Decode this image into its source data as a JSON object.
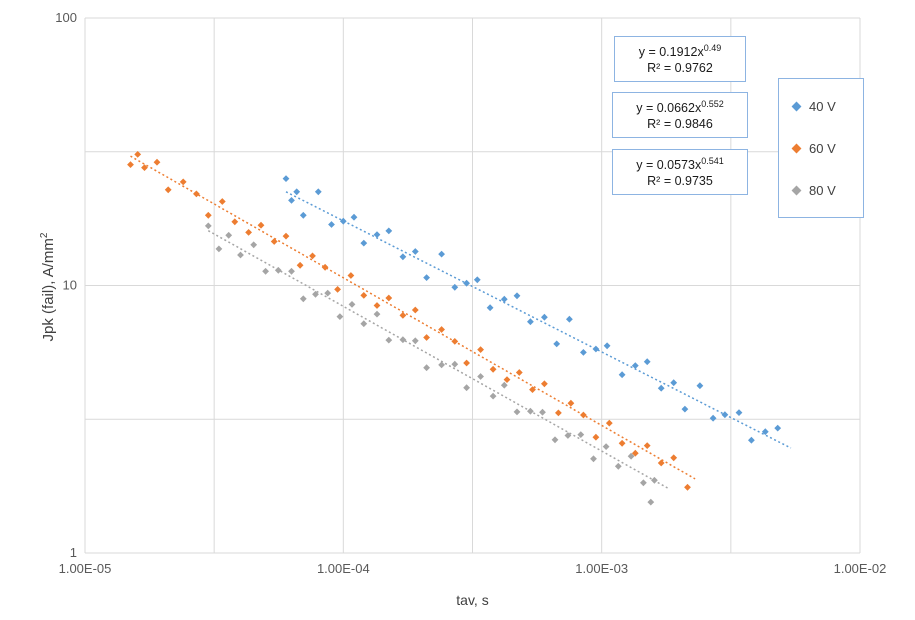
{
  "chart_data": {
    "type": "scatter",
    "title": "",
    "xlabel": "tav, s",
    "ylabel": "Jpk (fail),  A/mm",
    "ylabel_sup": "2",
    "x_scale": "log",
    "y_scale": "log",
    "xlim": [
      1e-05,
      0.01
    ],
    "ylim": [
      1,
      100
    ],
    "x_ticks": [
      {
        "value": 1e-05,
        "label": "1.00E-05"
      },
      {
        "value": 0.0001,
        "label": "1.00E-04"
      },
      {
        "value": 0.001,
        "label": "1.00E-03"
      },
      {
        "value": 0.01,
        "label": "1.00E-02"
      }
    ],
    "y_ticks": [
      {
        "value": 1,
        "label": "1"
      },
      {
        "value": 10,
        "label": "10"
      },
      {
        "value": 100,
        "label": "100"
      }
    ],
    "grid": "half-decade",
    "grid_color": "#D9D9D9",
    "legend_position": "right",
    "series": [
      {
        "name": "40 V",
        "color": "#5B9BD5",
        "marker": "diamond",
        "fit": {
          "a": 0.1912,
          "b": -0.49,
          "x_min": 6e-05,
          "x_max": 0.0054
        },
        "points": [
          [
            6e-05,
            25.1
          ],
          [
            6.3e-05,
            20.8
          ],
          [
            6.6e-05,
            22.4
          ],
          [
            7e-05,
            18.3
          ],
          [
            8e-05,
            22.4
          ],
          [
            9e-05,
            16.9
          ],
          [
            0.0001,
            17.4
          ],
          [
            0.00011,
            18.0
          ],
          [
            0.00012,
            14.4
          ],
          [
            0.000135,
            15.5
          ],
          [
            0.00015,
            16.0
          ],
          [
            0.00017,
            12.8
          ],
          [
            0.00019,
            13.4
          ],
          [
            0.00021,
            10.7
          ],
          [
            0.00024,
            13.1
          ],
          [
            0.00027,
            9.85
          ],
          [
            0.0003,
            10.2
          ],
          [
            0.00033,
            10.5
          ],
          [
            0.00037,
            8.26
          ],
          [
            0.00042,
            8.89
          ],
          [
            0.00047,
            9.15
          ],
          [
            0.00053,
            7.32
          ],
          [
            0.0006,
            7.61
          ],
          [
            0.00067,
            6.05
          ],
          [
            0.00075,
            7.48
          ],
          [
            0.00085,
            5.62
          ],
          [
            0.00095,
            5.79
          ],
          [
            0.00105,
            5.95
          ],
          [
            0.0012,
            4.64
          ],
          [
            0.00135,
            5.02
          ],
          [
            0.0015,
            5.19
          ],
          [
            0.0017,
            4.13
          ],
          [
            0.0019,
            4.33
          ],
          [
            0.0021,
            3.45
          ],
          [
            0.0024,
            4.22
          ],
          [
            0.0027,
            3.19
          ],
          [
            0.003,
            3.29
          ],
          [
            0.0034,
            3.35
          ],
          [
            0.0038,
            2.64
          ],
          [
            0.0043,
            2.84
          ],
          [
            0.0048,
            2.93
          ]
        ]
      },
      {
        "name": "60 V",
        "color": "#ED7D31",
        "marker": "diamond",
        "fit": {
          "a": 0.0662,
          "b": -0.552,
          "x_min": 1.5e-05,
          "x_max": 0.0023
        },
        "points": [
          [
            1.5e-05,
            28.3
          ],
          [
            1.6e-05,
            30.9
          ],
          [
            1.7e-05,
            27.6
          ],
          [
            1.9e-05,
            28.9
          ],
          [
            2.1e-05,
            22.8
          ],
          [
            2.4e-05,
            24.4
          ],
          [
            2.7e-05,
            22.0
          ],
          [
            3e-05,
            18.3
          ],
          [
            3.4e-05,
            20.6
          ],
          [
            3.8e-05,
            17.3
          ],
          [
            4.3e-05,
            15.8
          ],
          [
            4.8e-05,
            16.8
          ],
          [
            5.4e-05,
            14.6
          ],
          [
            6e-05,
            15.3
          ],
          [
            6.8e-05,
            11.9
          ],
          [
            7.6e-05,
            12.9
          ],
          [
            8.5e-05,
            11.7
          ],
          [
            9.5e-05,
            9.67
          ],
          [
            0.000107,
            10.9
          ],
          [
            0.00012,
            9.18
          ],
          [
            0.000135,
            8.42
          ],
          [
            0.00015,
            8.98
          ],
          [
            0.00017,
            7.73
          ],
          [
            0.00019,
            8.1
          ],
          [
            0.00021,
            6.39
          ],
          [
            0.00024,
            6.85
          ],
          [
            0.00027,
            6.18
          ],
          [
            0.0003,
            5.13
          ],
          [
            0.00034,
            5.76
          ],
          [
            0.00038,
            4.86
          ],
          [
            0.00043,
            4.45
          ],
          [
            0.00048,
            4.73
          ],
          [
            0.00054,
            4.08
          ],
          [
            0.0006,
            4.29
          ],
          [
            0.00068,
            3.34
          ],
          [
            0.00076,
            3.63
          ],
          [
            0.00085,
            3.28
          ],
          [
            0.00095,
            2.71
          ],
          [
            0.00107,
            3.06
          ],
          [
            0.0012,
            2.57
          ],
          [
            0.00135,
            2.36
          ],
          [
            0.0015,
            2.52
          ],
          [
            0.0017,
            2.17
          ],
          [
            0.0019,
            2.27
          ],
          [
            0.00215,
            1.76
          ]
        ]
      },
      {
        "name": "80 V",
        "color": "#A5A5A5",
        "marker": "diamond",
        "fit": {
          "a": 0.0573,
          "b": -0.541,
          "x_min": 3e-05,
          "x_max": 0.0018
        },
        "points": [
          [
            3e-05,
            16.7
          ],
          [
            3.3e-05,
            13.7
          ],
          [
            3.6e-05,
            15.4
          ],
          [
            4e-05,
            13.0
          ],
          [
            4.5e-05,
            14.2
          ],
          [
            5e-05,
            11.3
          ],
          [
            5.6e-05,
            11.4
          ],
          [
            6.3e-05,
            11.3
          ],
          [
            7e-05,
            8.92
          ],
          [
            7.8e-05,
            9.27
          ],
          [
            8.7e-05,
            9.37
          ],
          [
            9.7e-05,
            7.65
          ],
          [
            0.000108,
            8.5
          ],
          [
            0.00012,
            7.2
          ],
          [
            0.000135,
            7.82
          ],
          [
            0.00015,
            6.25
          ],
          [
            0.00017,
            6.27
          ],
          [
            0.00019,
            6.21
          ],
          [
            0.00021,
            4.93
          ],
          [
            0.00024,
            5.05
          ],
          [
            0.00027,
            5.08
          ],
          [
            0.0003,
            4.15
          ],
          [
            0.00034,
            4.57
          ],
          [
            0.00038,
            3.86
          ],
          [
            0.00042,
            4.24
          ],
          [
            0.00047,
            3.37
          ],
          [
            0.00053,
            3.39
          ],
          [
            0.00059,
            3.36
          ],
          [
            0.00066,
            2.65
          ],
          [
            0.00074,
            2.75
          ],
          [
            0.00083,
            2.77
          ],
          [
            0.00093,
            2.25
          ],
          [
            0.00104,
            2.5
          ],
          [
            0.00116,
            2.11
          ],
          [
            0.0013,
            2.3
          ],
          [
            0.00145,
            1.83
          ],
          [
            0.00155,
            1.55
          ],
          [
            0.0016,
            1.87
          ]
        ]
      }
    ],
    "equations": [
      {
        "text": "y = 0.1912x",
        "exponent": "0.49",
        "r2": "R² = 0.9762"
      },
      {
        "text": "y = 0.0662x",
        "exponent": "0.552",
        "r2": "R² = 0.9846"
      },
      {
        "text": "y = 0.0573x",
        "exponent": "0.541",
        "r2": "R² = 0.9735"
      }
    ]
  }
}
